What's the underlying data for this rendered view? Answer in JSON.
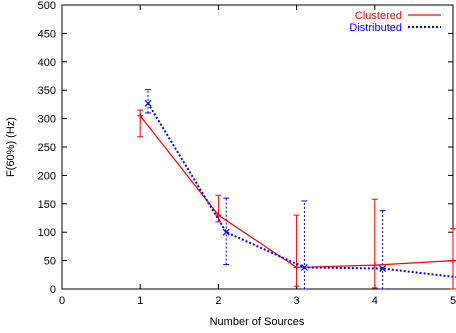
{
  "chart_data": {
    "type": "line",
    "title": "",
    "xlabel": "Number of Sources",
    "ylabel": "F(60%) (Hz)",
    "xlim": [
      0,
      5
    ],
    "ylim": [
      0,
      500
    ],
    "x_ticks": [
      "0",
      "1",
      "2",
      "3",
      "4",
      "5"
    ],
    "y_ticks": [
      "0",
      "50",
      "100",
      "150",
      "200",
      "250",
      "300",
      "350",
      "400",
      "450",
      "500"
    ],
    "grid": false,
    "legend_position": "top-right",
    "series": [
      {
        "name": "Clustered",
        "color": "#ff0000",
        "line_style": "solid",
        "x": [
          1,
          2,
          3,
          4,
          5
        ],
        "y": [
          305,
          130,
          38,
          42,
          50
        ],
        "y_low": [
          268,
          118,
          5,
          2,
          0
        ],
        "y_high": [
          315,
          165,
          130,
          158,
          106
        ]
      },
      {
        "name": "Distributed",
        "color": "#0000ff",
        "line_style": "dotted",
        "x": [
          1.1,
          2.1,
          3.1,
          4.1,
          5.1
        ],
        "y": [
          327,
          100,
          38,
          36,
          20
        ],
        "y_low": [
          310,
          43,
          0,
          0,
          0
        ],
        "y_high": [
          351,
          160,
          155,
          138,
          52
        ]
      }
    ]
  }
}
